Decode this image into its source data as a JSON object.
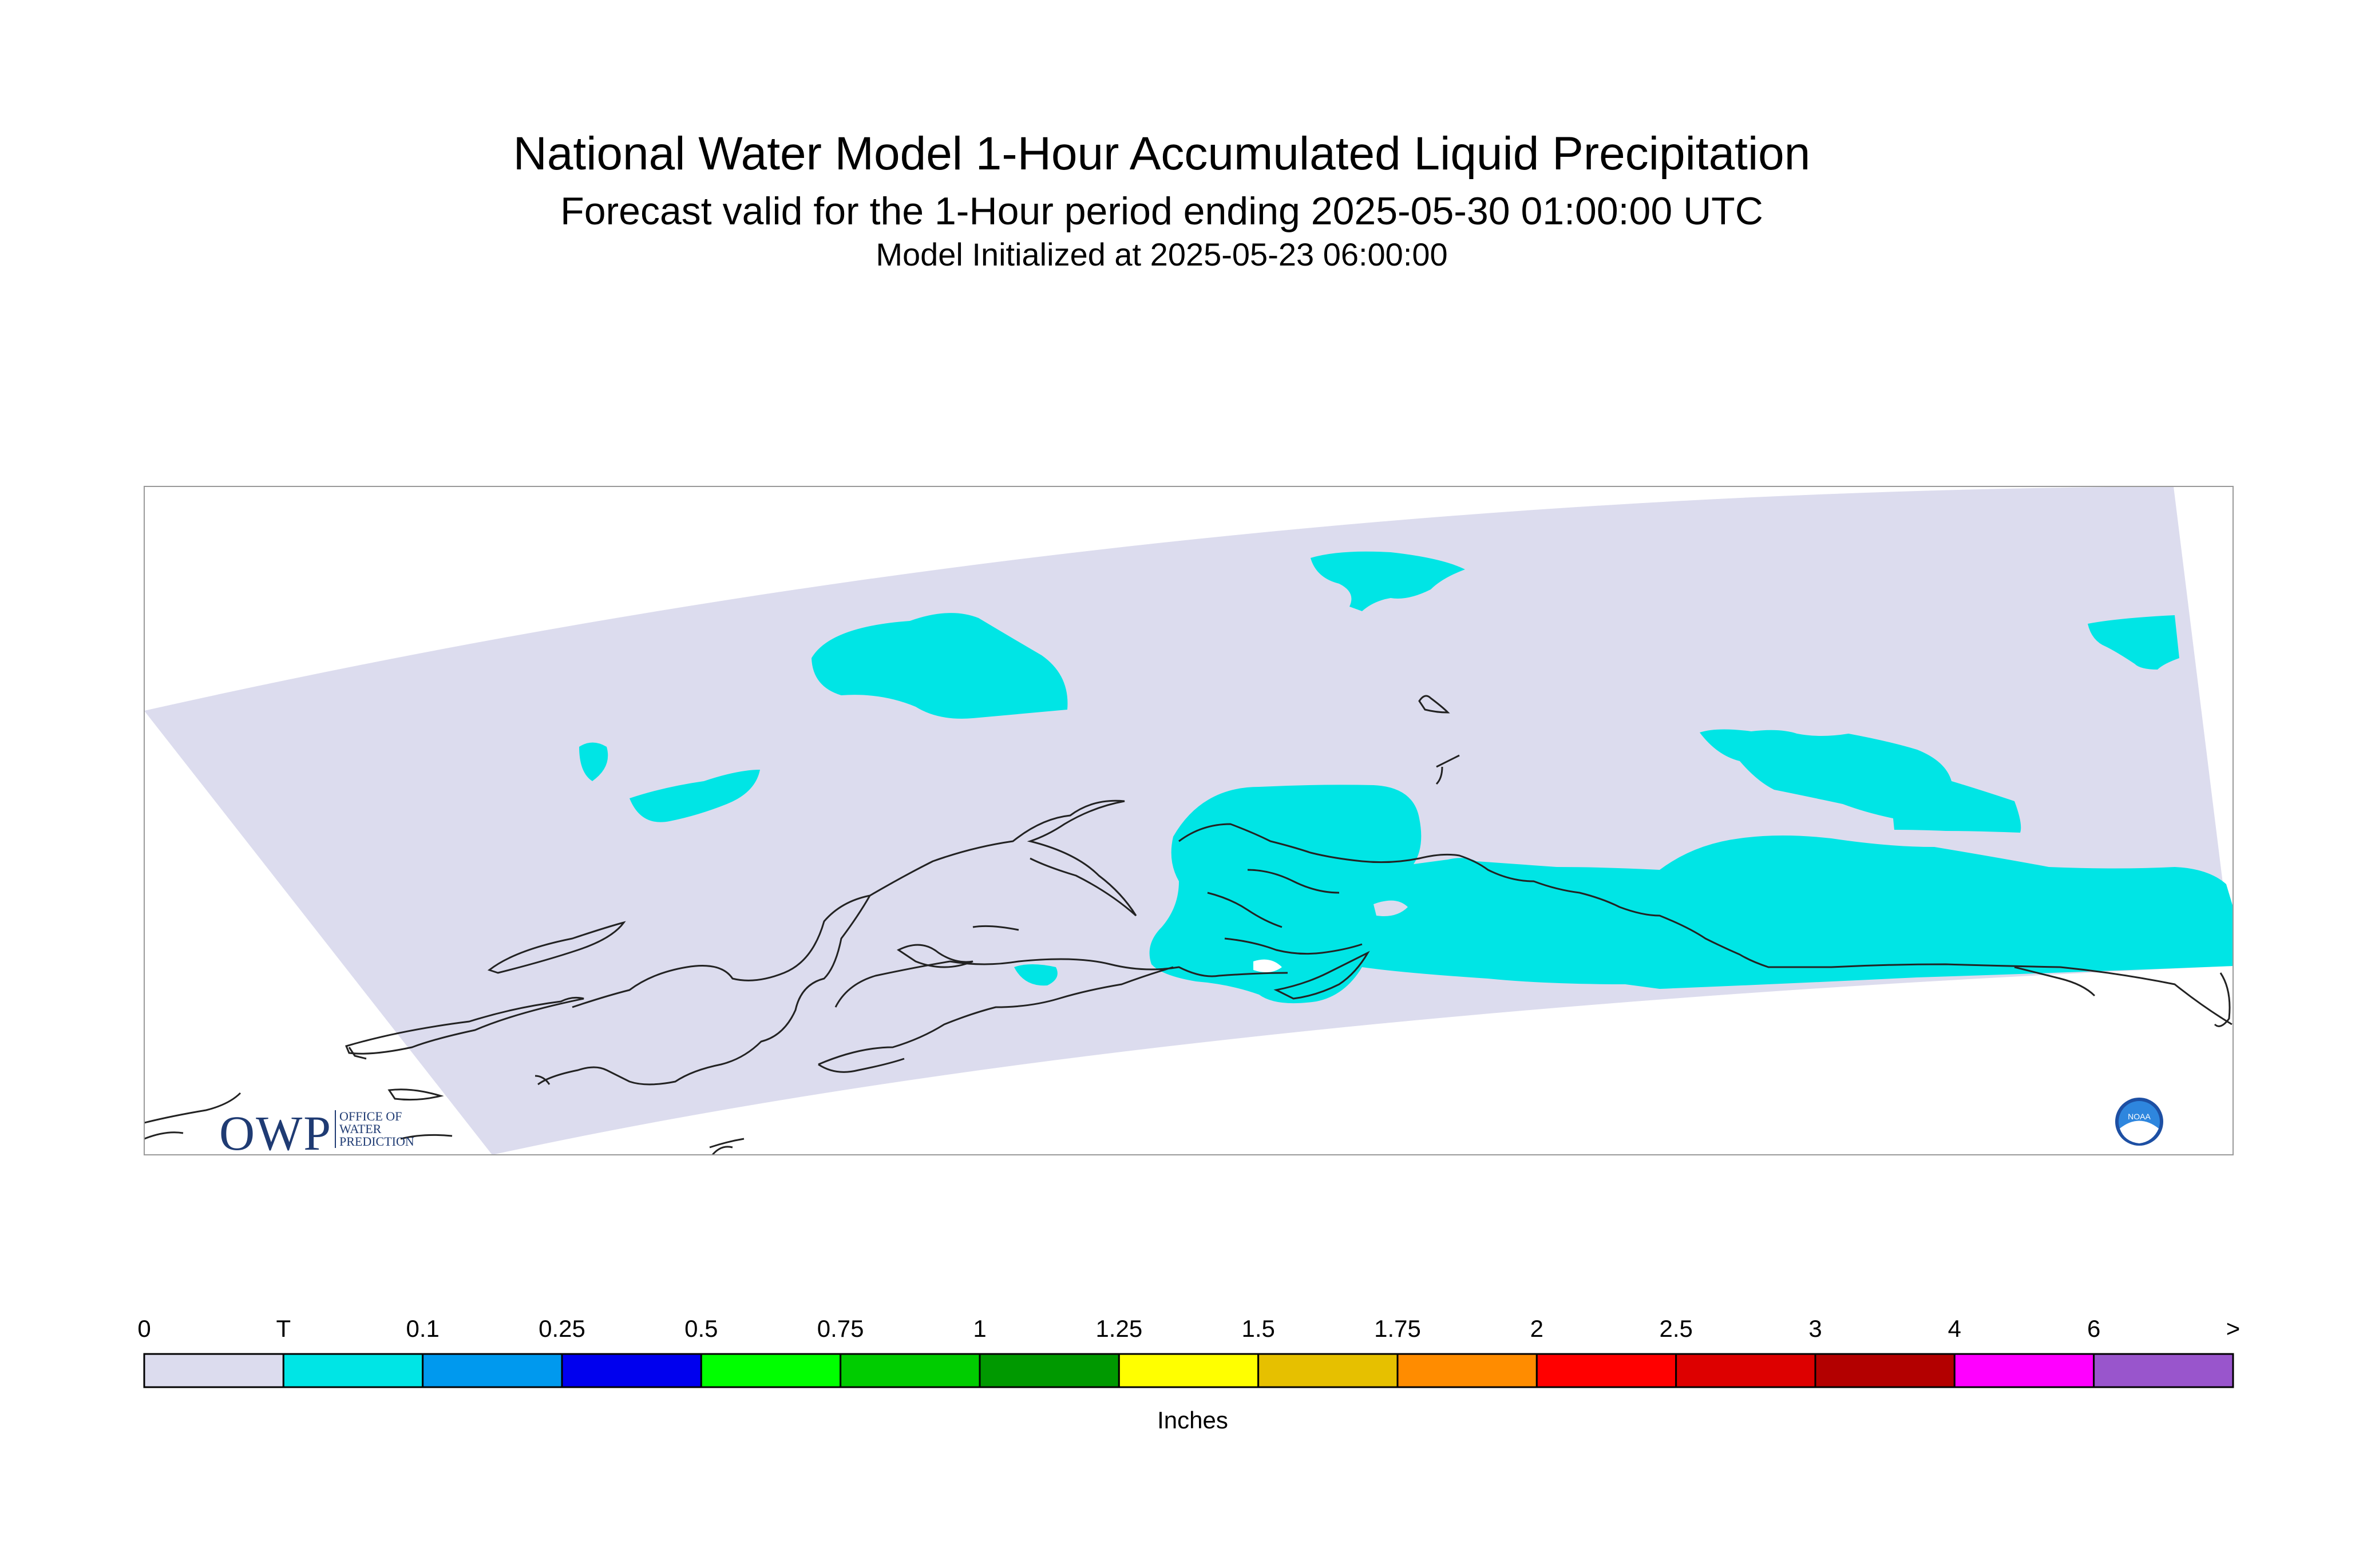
{
  "title": "National Water Model 1-Hour Accumulated Liquid Precipitation",
  "subtitle": "Forecast valid for the 1-Hour period ending 2025-05-30 01:00:00 UTC",
  "init_line": "Model Initialized at 2025-05-23 06:00:00",
  "colors": {
    "domain_fill": "#dcdcee",
    "trace_fill": "#00e5e5",
    "coast_line": "#222222",
    "frame": "#999999"
  },
  "legend": {
    "units": "Inches",
    "labels": [
      "0",
      "T",
      "0.1",
      "0.25",
      "0.5",
      "0.75",
      "1",
      "1.25",
      "1.5",
      "1.75",
      "2",
      "2.5",
      "3",
      "4",
      "6",
      ">"
    ],
    "colors": [
      "#dcdcee",
      "#00e5e5",
      "#0099ee",
      "#0000ee",
      "#00ff00",
      "#00cc00",
      "#009900",
      "#ffff00",
      "#e6c000",
      "#ff8c00",
      "#ff0000",
      "#dd0000",
      "#b30000",
      "#ff00ff",
      "#9955cc"
    ]
  },
  "logos": {
    "owp_text": "OWP",
    "owp_sub": [
      "OFFICE OF",
      "WATER",
      "PREDICTION"
    ],
    "noaa_text": "NOAA"
  }
}
